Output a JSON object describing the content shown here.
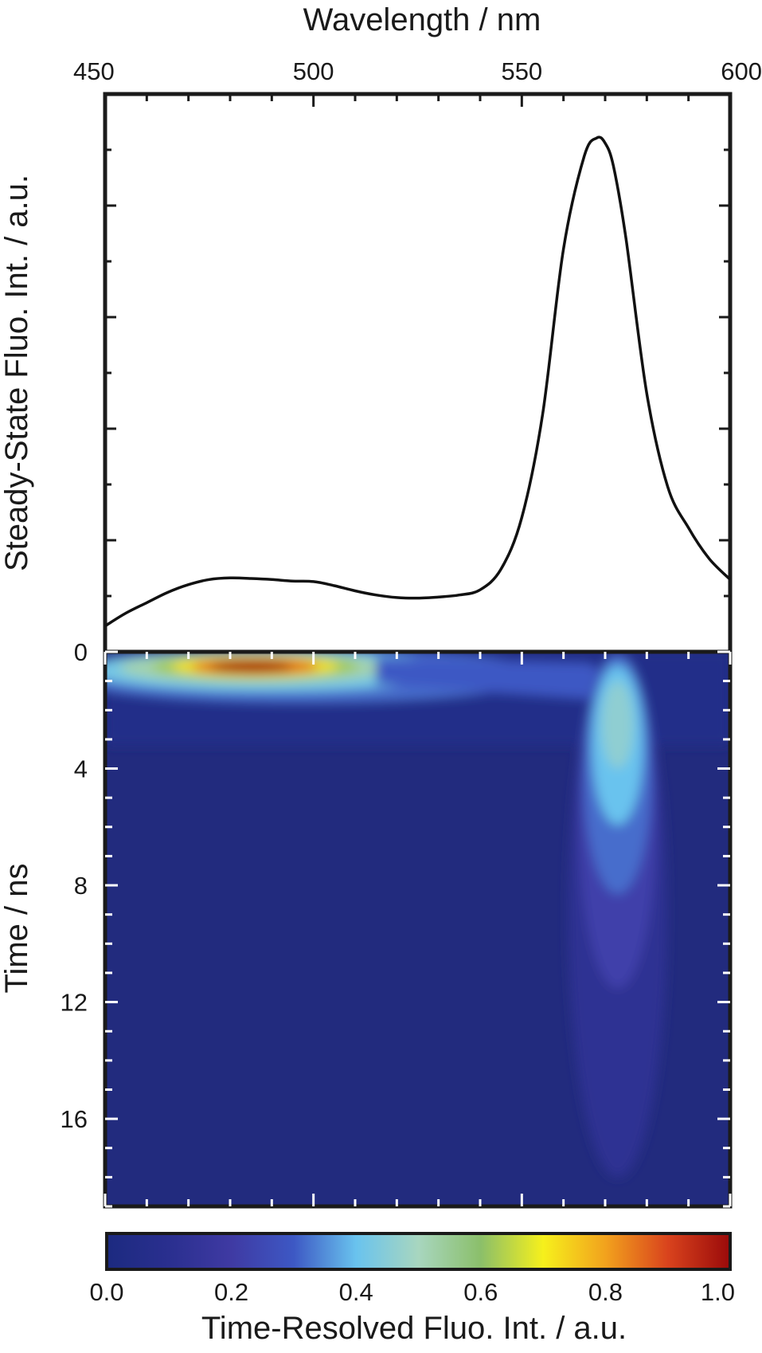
{
  "chart_data": [
    {
      "type": "line",
      "xlabel": "Wavelength / nm",
      "ylabel": "Steady-State Fluo. Int. / a.u.",
      "xlim": [
        450,
        600
      ],
      "xticks": [
        450,
        500,
        550,
        600
      ],
      "ylim": [
        0,
        1.08
      ],
      "y_tick_labels_shown": false,
      "grid": false,
      "series": [
        {
          "x": [
            450,
            455,
            460,
            465,
            470,
            475,
            480,
            485,
            490,
            495,
            500,
            505,
            510,
            515,
            520,
            525,
            530,
            535,
            540,
            545,
            550,
            555,
            560,
            565,
            568,
            570,
            572,
            575,
            580,
            585,
            590,
            595,
            600
          ],
          "y": [
            0.05,
            0.075,
            0.095,
            0.115,
            0.13,
            0.14,
            0.143,
            0.142,
            0.14,
            0.137,
            0.136,
            0.128,
            0.118,
            0.11,
            0.105,
            0.104,
            0.106,
            0.11,
            0.12,
            0.16,
            0.26,
            0.46,
            0.78,
            0.96,
            0.995,
            0.985,
            0.94,
            0.8,
            0.5,
            0.32,
            0.24,
            0.18,
            0.14
          ]
        }
      ]
    },
    {
      "type": "heatmap",
      "xlabel": "",
      "ylabel": "Time / ns",
      "xlim": [
        450,
        600
      ],
      "ylim": [
        0,
        19
      ],
      "y_inverted": true,
      "yticks": [
        0,
        4,
        8,
        12,
        16
      ],
      "colorbar": {
        "label": "Time-Resolved Fluo. Int. / a.u.",
        "range": [
          0.0,
          1.0
        ],
        "ticks": [
          "0.0",
          "0.2",
          "0.4",
          "0.6",
          "0.8",
          "1.0"
        ],
        "colormap": [
          "#1c2a80",
          "#2a2f8f",
          "#3f3aa3",
          "#3d58c4",
          "#69c3ee",
          "#a8d6bf",
          "#8bbf6a",
          "#f6f01c",
          "#f2a21d",
          "#d9431d",
          "#9a0a0a"
        ]
      },
      "features": [
        {
          "name": "early-emission",
          "wavelength_center": 486,
          "wavelength_width": 20,
          "time_peak": 0.5,
          "time_width": 0.6,
          "max_intensity": 1.0
        },
        {
          "name": "late-emission",
          "wavelength_center": 573,
          "wavelength_width": 5,
          "time_peak": 2.5,
          "time_width": 3.5,
          "max_intensity": 0.46
        }
      ]
    }
  ]
}
